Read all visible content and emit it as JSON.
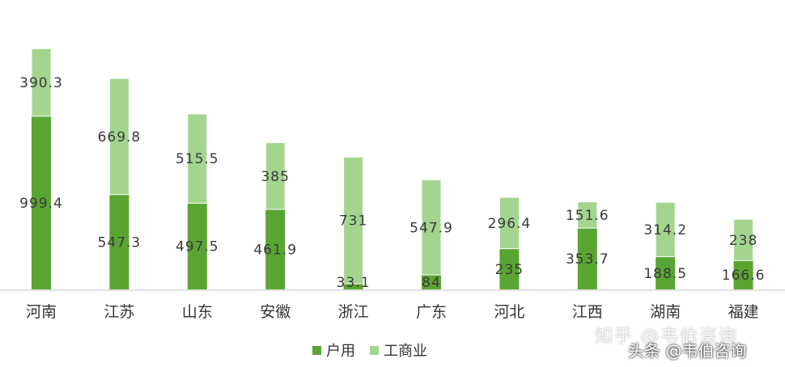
{
  "chart_data": {
    "type": "bar",
    "stacked": true,
    "categories": [
      "河南",
      "江苏",
      "山东",
      "安徽",
      "浙江",
      "广东",
      "河北",
      "江西",
      "湖南",
      "福建"
    ],
    "series": [
      {
        "name": "户用",
        "values": [
          999.4,
          547.3,
          497.5,
          461.9,
          33.1,
          84,
          235,
          353.7,
          188.5,
          166.6
        ],
        "color": "#5aa532"
      },
      {
        "name": "工商业",
        "values": [
          390.3,
          669.8,
          515.5,
          385,
          731,
          547.9,
          296.4,
          151.6,
          314.2,
          238
        ],
        "color": "#a3d58e"
      }
    ],
    "ylim": [
      0,
      1400
    ],
    "grid": false,
    "legend": "bottom"
  },
  "watermarks": {
    "zhihu": "知乎 @韦伯咨询",
    "toutiao": "头条 @韦伯咨询"
  }
}
